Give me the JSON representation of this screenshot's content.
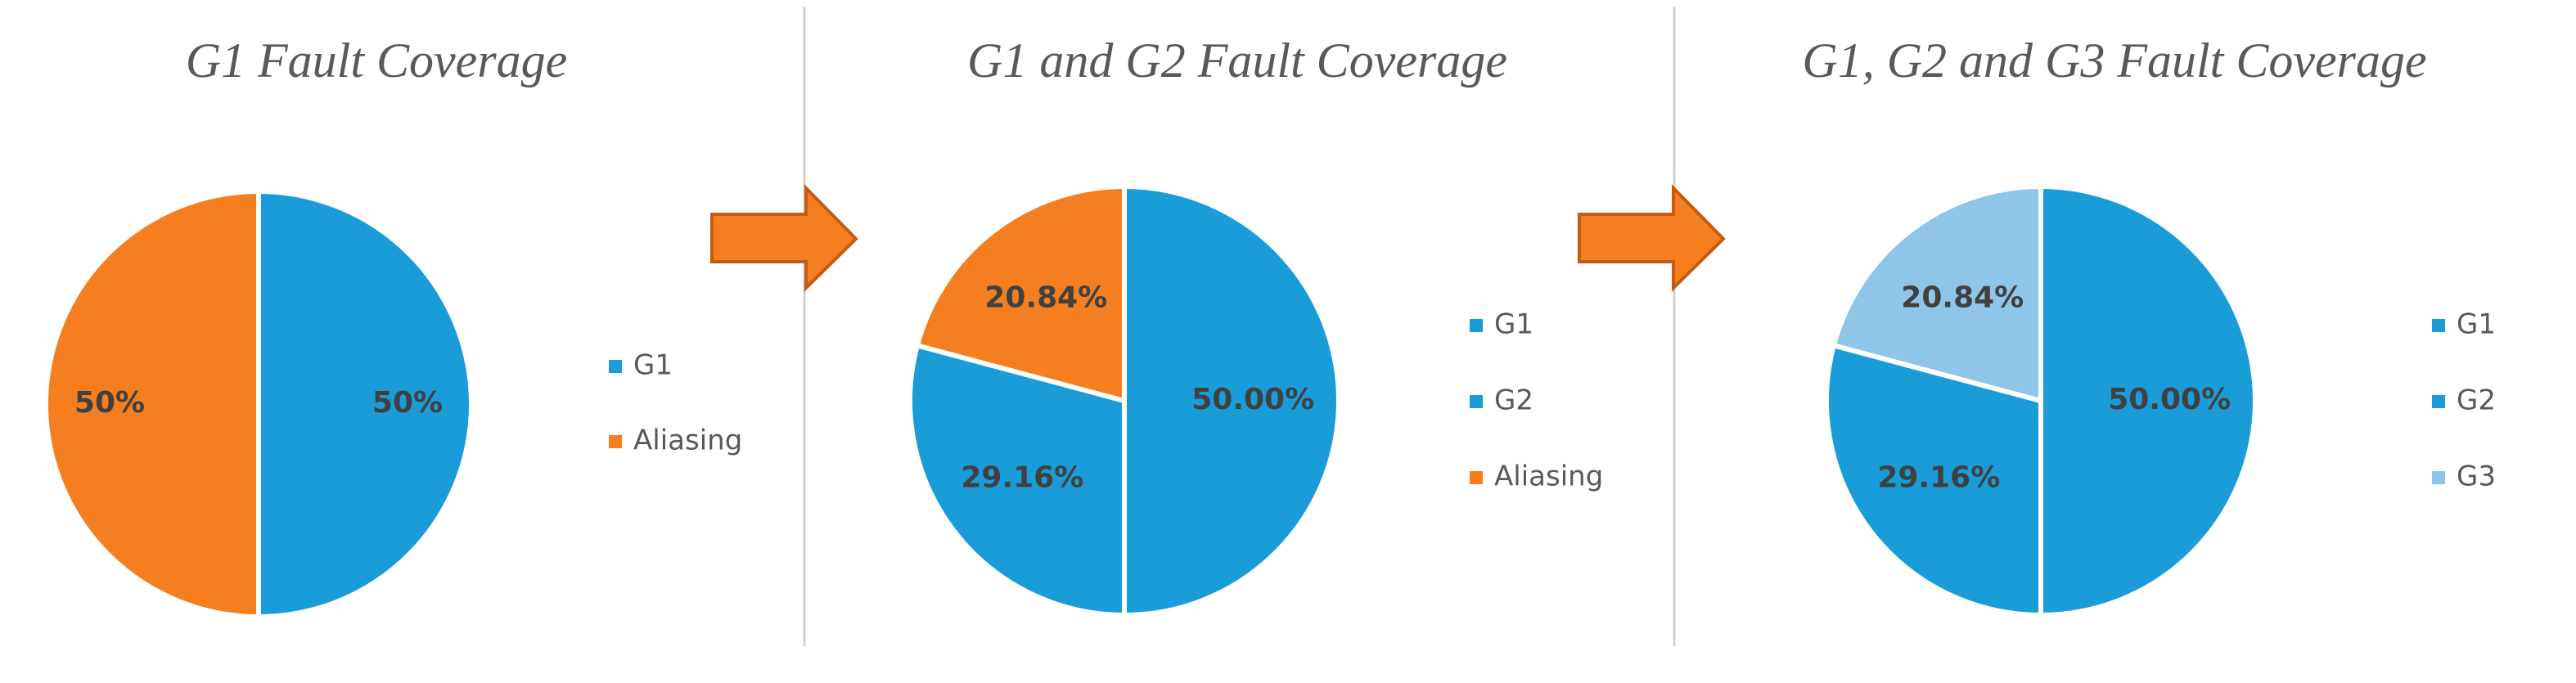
{
  "chart_data": [
    {
      "type": "pie",
      "title": "G1 Fault Coverage",
      "categories": [
        "G1",
        "Aliasing"
      ],
      "values": [
        50,
        50
      ],
      "value_labels": [
        "50%",
        "50%"
      ],
      "colors": [
        "#1a9cd8",
        "#f57f20"
      ]
    },
    {
      "type": "pie",
      "title": "G1 and G2 Fault Coverage",
      "categories": [
        "G1",
        "G2",
        "Aliasing"
      ],
      "values": [
        50.0,
        29.16,
        20.84
      ],
      "value_labels": [
        "50.00%",
        "29.16%",
        "20.84%"
      ],
      "colors": [
        "#1a9cd8",
        "#1a9cd8",
        "#f57f20"
      ]
    },
    {
      "type": "pie",
      "title": "G1, G2 and G3 Fault Coverage",
      "categories": [
        "G1",
        "G2",
        "G3"
      ],
      "values": [
        50.0,
        29.16,
        20.84
      ],
      "value_labels": [
        "50.00%",
        "29.16%",
        "20.84%"
      ],
      "colors": [
        "#1a9cd8",
        "#1a9cd8",
        "#8ec5e9"
      ]
    }
  ]
}
